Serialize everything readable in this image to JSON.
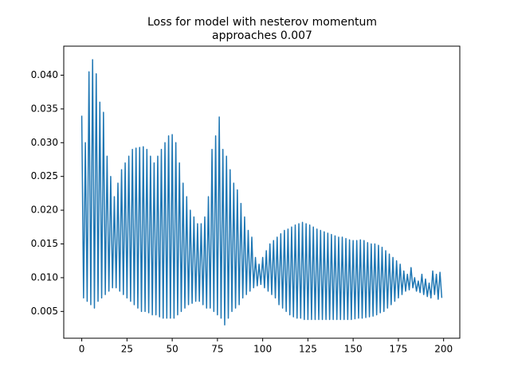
{
  "chart_data": {
    "type": "line",
    "title": [
      "Loss for model with nesterov momentum",
      "approaches 0.007"
    ],
    "color": "#1f77b4",
    "xlim": [
      -9.95,
      208.95
    ],
    "ylim": [
      0.00103,
      0.0443
    ],
    "xticks": [
      0,
      25,
      50,
      75,
      100,
      125,
      150,
      175,
      200
    ],
    "yticks": [
      0.005,
      {
        "value": 0.01,
        "label": "0.010"
      },
      0.015,
      {
        "value": 0.02,
        "label": "0.020"
      },
      0.025,
      {
        "value": 0.03,
        "label": "0.030"
      },
      0.035,
      {
        "value": 0.04,
        "label": "0.040"
      }
    ],
    "x": [
      0,
      1,
      2,
      3,
      4,
      5,
      6,
      7,
      8,
      9,
      10,
      11,
      12,
      13,
      14,
      15,
      16,
      17,
      18,
      19,
      20,
      21,
      22,
      23,
      24,
      25,
      26,
      27,
      28,
      29,
      30,
      31,
      32,
      33,
      34,
      35,
      36,
      37,
      38,
      39,
      40,
      41,
      42,
      43,
      44,
      45,
      46,
      47,
      48,
      49,
      50,
      51,
      52,
      53,
      54,
      55,
      56,
      57,
      58,
      59,
      60,
      61,
      62,
      63,
      64,
      65,
      66,
      67,
      68,
      69,
      70,
      71,
      72,
      73,
      74,
      75,
      76,
      77,
      78,
      79,
      80,
      81,
      82,
      83,
      84,
      85,
      86,
      87,
      88,
      89,
      90,
      91,
      92,
      93,
      94,
      95,
      96,
      97,
      98,
      99,
      100,
      101,
      102,
      103,
      104,
      105,
      106,
      107,
      108,
      109,
      110,
      111,
      112,
      113,
      114,
      115,
      116,
      117,
      118,
      119,
      120,
      121,
      122,
      123,
      124,
      125,
      126,
      127,
      128,
      129,
      130,
      131,
      132,
      133,
      134,
      135,
      136,
      137,
      138,
      139,
      140,
      141,
      142,
      143,
      144,
      145,
      146,
      147,
      148,
      149,
      150,
      151,
      152,
      153,
      154,
      155,
      156,
      157,
      158,
      159,
      160,
      161,
      162,
      163,
      164,
      165,
      166,
      167,
      168,
      169,
      170,
      171,
      172,
      173,
      174,
      175,
      176,
      177,
      178,
      179,
      180,
      181,
      182,
      183,
      184,
      185,
      186,
      187,
      188,
      189,
      190,
      191,
      192,
      193,
      194,
      195,
      196,
      197,
      198,
      199
    ],
    "values": [
      0.034,
      0.007,
      0.03,
      0.0065,
      0.0405,
      0.006,
      0.0423,
      0.0055,
      0.0402,
      0.0065,
      0.036,
      0.007,
      0.0345,
      0.0075,
      0.028,
      0.008,
      0.025,
      0.0085,
      0.022,
      0.0085,
      0.024,
      0.008,
      0.026,
      0.0075,
      0.027,
      0.007,
      0.028,
      0.0065,
      0.029,
      0.006,
      0.0292,
      0.0055,
      0.0293,
      0.005,
      0.0294,
      0.005,
      0.029,
      0.0048,
      0.028,
      0.0045,
      0.027,
      0.0045,
      0.028,
      0.0042,
      0.029,
      0.004,
      0.03,
      0.004,
      0.031,
      0.004,
      0.0312,
      0.004,
      0.03,
      0.0045,
      0.027,
      0.005,
      0.024,
      0.0055,
      0.022,
      0.006,
      0.02,
      0.0062,
      0.019,
      0.0065,
      0.018,
      0.0065,
      0.018,
      0.006,
      0.019,
      0.0055,
      0.022,
      0.0055,
      0.029,
      0.005,
      0.031,
      0.0045,
      0.0338,
      0.004,
      0.029,
      0.003,
      0.028,
      0.004,
      0.026,
      0.005,
      0.024,
      0.0055,
      0.023,
      0.006,
      0.021,
      0.007,
      0.019,
      0.0075,
      0.017,
      0.008,
      0.016,
      0.0085,
      0.013,
      0.0088,
      0.012,
      0.009,
      0.013,
      0.0085,
      0.014,
      0.008,
      0.015,
      0.0075,
      0.0155,
      0.007,
      0.016,
      0.006,
      0.0165,
      0.0055,
      0.017,
      0.005,
      0.0172,
      0.0045,
      0.0175,
      0.0042,
      0.0178,
      0.004,
      0.018,
      0.004,
      0.0182,
      0.0038,
      0.018,
      0.0038,
      0.0178,
      0.0038,
      0.0175,
      0.0038,
      0.0172,
      0.0038,
      0.017,
      0.0038,
      0.0168,
      0.0038,
      0.0166,
      0.0038,
      0.0164,
      0.0038,
      0.0162,
      0.0038,
      0.016,
      0.0038,
      0.016,
      0.0038,
      0.0158,
      0.0038,
      0.0156,
      0.0038,
      0.0155,
      0.0039,
      0.0155,
      0.004,
      0.0156,
      0.004,
      0.0155,
      0.0041,
      0.0152,
      0.0042,
      0.015,
      0.0043,
      0.015,
      0.0045,
      0.0148,
      0.0048,
      0.0145,
      0.005,
      0.014,
      0.0055,
      0.0135,
      0.006,
      0.013,
      0.0065,
      0.0125,
      0.007,
      0.012,
      0.0075,
      0.011,
      0.008,
      0.0105,
      0.0082,
      0.0115,
      0.0085,
      0.01,
      0.008,
      0.0095,
      0.0078,
      0.0105,
      0.0075,
      0.0098,
      0.0072,
      0.0092,
      0.007,
      0.011,
      0.0075,
      0.0105,
      0.0068,
      0.0108,
      0.007
    ]
  }
}
